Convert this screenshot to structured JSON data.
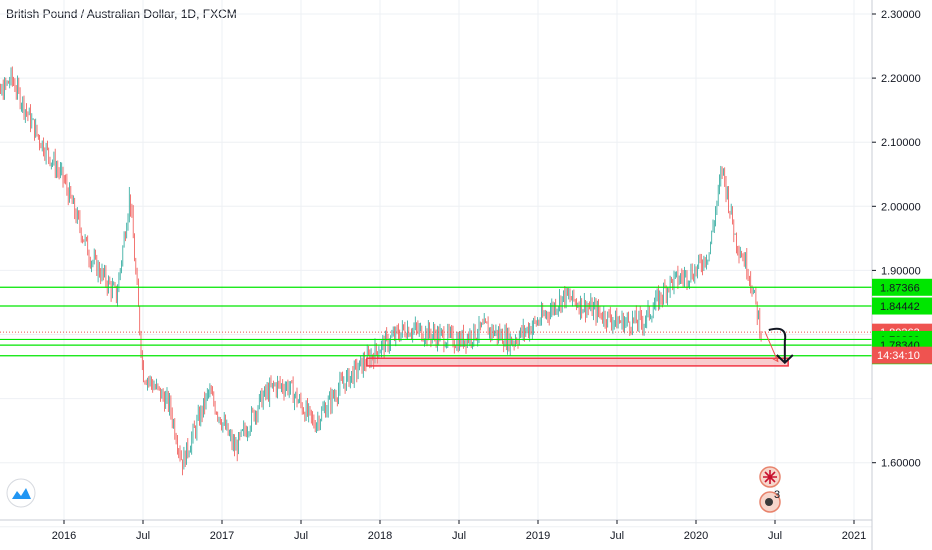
{
  "header": {
    "title": "British Pound / Australian Dollar, 1D, FXCM"
  },
  "colors": {
    "up": "#26a69a",
    "down": "#ef5350",
    "green_line": "#00e600",
    "green_tag": "#00e600",
    "red_zone": "#f23645",
    "price_tag": "#ef5350",
    "dark_tag": "#ef5350"
  },
  "chart_data": {
    "type": "candlestick",
    "title": "British Pound / Australian Dollar, 1D, FXCM",
    "xlabel": "",
    "ylabel": "",
    "x_ticks": [
      "2016",
      "Jul",
      "2017",
      "Jul",
      "2018",
      "Jul",
      "2019",
      "Jul",
      "2020",
      "Jul",
      "2021"
    ],
    "y_ticks": [
      "2.30000",
      "2.20000",
      "2.10000",
      "2.00000",
      "1.90000",
      "1.60000"
    ],
    "ylim": [
      1.5,
      2.32
    ],
    "grid": true,
    "price_path": [
      {
        "x": "2015-07",
        "y": 2.14
      },
      {
        "x": "2015-09",
        "y": 2.2
      },
      {
        "x": "2015-11",
        "y": 2.11
      },
      {
        "x": "2016-01",
        "y": 2.04
      },
      {
        "x": "2016-03",
        "y": 1.92
      },
      {
        "x": "2016-05",
        "y": 1.86
      },
      {
        "x": "2016-06",
        "y": 2.02
      },
      {
        "x": "2016-07",
        "y": 1.74
      },
      {
        "x": "2016-09",
        "y": 1.69
      },
      {
        "x": "2016-10",
        "y": 1.6
      },
      {
        "x": "2016-12",
        "y": 1.71
      },
      {
        "x": "2017-02",
        "y": 1.62
      },
      {
        "x": "2017-04",
        "y": 1.7
      },
      {
        "x": "2017-05",
        "y": 1.72
      },
      {
        "x": "2017-06",
        "y": 1.72
      },
      {
        "x": "2017-08",
        "y": 1.66
      },
      {
        "x": "2017-10",
        "y": 1.72
      },
      {
        "x": "2018-01",
        "y": 1.78
      },
      {
        "x": "2018-03",
        "y": 1.81
      },
      {
        "x": "2018-05",
        "y": 1.8
      },
      {
        "x": "2018-07",
        "y": 1.79
      },
      {
        "x": "2018-09",
        "y": 1.81
      },
      {
        "x": "2018-11",
        "y": 1.79
      },
      {
        "x": "2019-01",
        "y": 1.82
      },
      {
        "x": "2019-03",
        "y": 1.86
      },
      {
        "x": "2019-05",
        "y": 1.84
      },
      {
        "x": "2019-07",
        "y": 1.82
      },
      {
        "x": "2019-09",
        "y": 1.82
      },
      {
        "x": "2019-11",
        "y": 1.88
      },
      {
        "x": "2020-01",
        "y": 1.9
      },
      {
        "x": "2020-02",
        "y": 1.93
      },
      {
        "x": "2020-03",
        "y": 2.06
      },
      {
        "x": "2020-04",
        "y": 1.95
      },
      {
        "x": "2020-05",
        "y": 1.9
      },
      {
        "x": "2020-06",
        "y": 1.8
      }
    ],
    "levels": [
      {
        "label": "1.87366",
        "value": 1.87366,
        "kind": "green"
      },
      {
        "label": "1.84442",
        "value": 1.84442,
        "kind": "green"
      },
      {
        "label": "1.80363",
        "value": 1.80363,
        "kind": "price"
      },
      {
        "label": "1.79230",
        "value": 1.7923,
        "kind": "green"
      },
      {
        "label": "1.78340",
        "value": 1.7834,
        "kind": "green"
      },
      {
        "label": "1.76687",
        "value": 1.76687,
        "kind": "green"
      }
    ],
    "countdown": "14:34:10",
    "support_zone": {
      "from_x": "2017-12",
      "to_x": "2020-08",
      "y_low": 1.751,
      "y_high": 1.763
    },
    "annotations": {
      "event_badge_count": "3"
    }
  }
}
